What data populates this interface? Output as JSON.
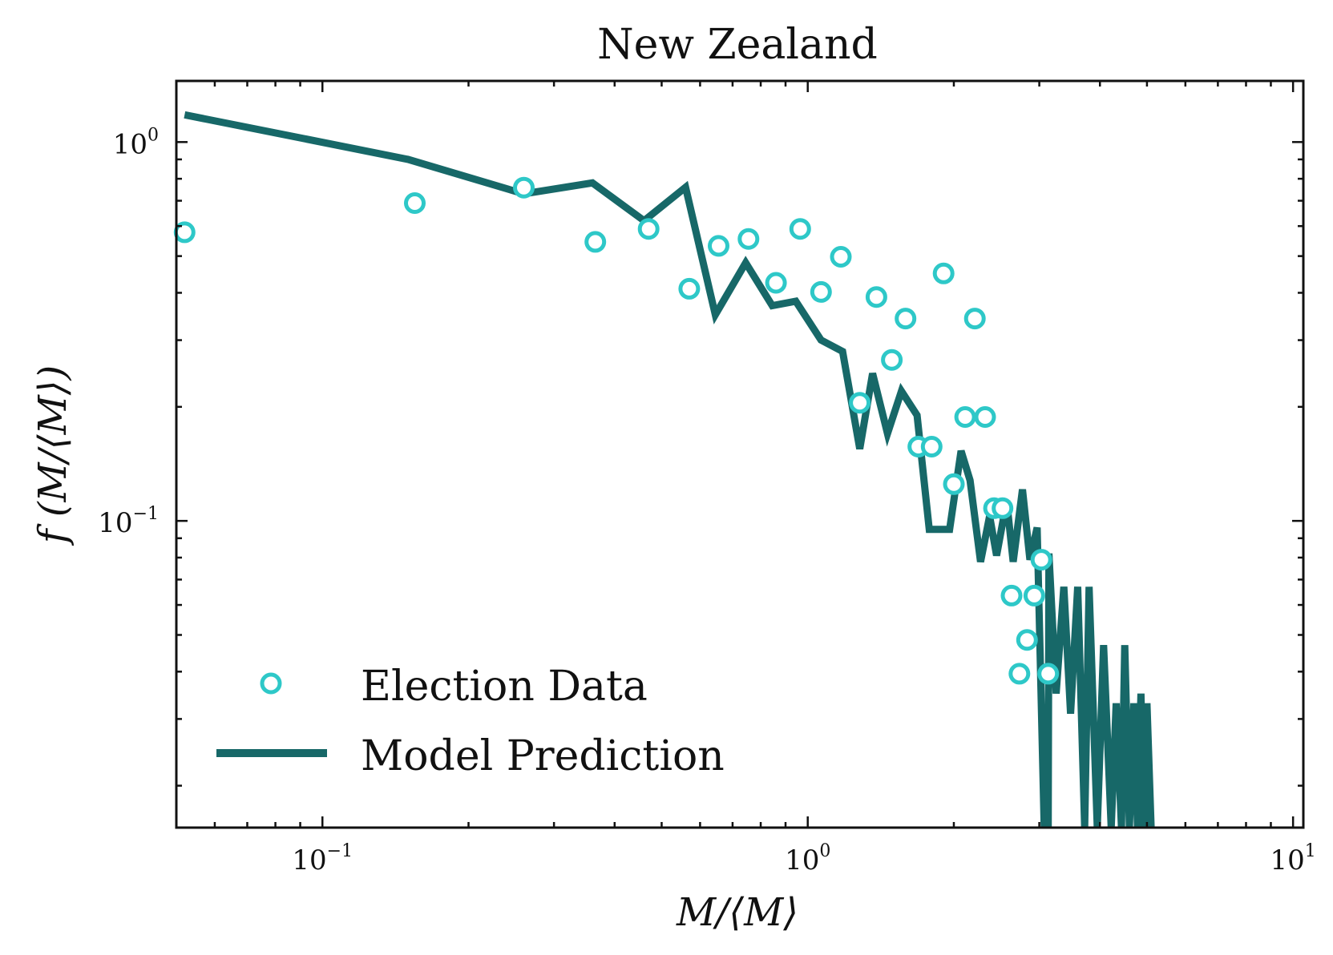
{
  "chart_data": {
    "type": "scatter",
    "title": "New Zealand",
    "xlabel": "M/⟨M⟩",
    "ylabel": "f (M/⟨M⟩)",
    "xscale": "log",
    "yscale": "log",
    "xlim": [
      0.05,
      10.5
    ],
    "ylim": [
      0.0155,
      1.45
    ],
    "x_ticks": [
      {
        "value": 0.1,
        "base": "10",
        "exp": "−1"
      },
      {
        "value": 1,
        "base": "10",
        "exp": "0"
      },
      {
        "value": 10,
        "base": "10",
        "exp": "1"
      }
    ],
    "y_ticks": [
      {
        "value": 0.1,
        "base": "10",
        "exp": "−1"
      },
      {
        "value": 1,
        "base": "10",
        "exp": "0"
      }
    ],
    "grid": false,
    "legend_position": "bottom-left",
    "series": [
      {
        "name": "Election Data",
        "kind": "markers",
        "color": "#2ec8c8",
        "points": [
          [
            0.052,
            0.578
          ],
          [
            0.155,
            0.69
          ],
          [
            0.26,
            0.758
          ],
          [
            0.365,
            0.545
          ],
          [
            0.47,
            0.59
          ],
          [
            0.57,
            0.41
          ],
          [
            0.655,
            0.532
          ],
          [
            0.755,
            0.555
          ],
          [
            0.86,
            0.425
          ],
          [
            0.965,
            0.59
          ],
          [
            1.065,
            0.402
          ],
          [
            1.17,
            0.498
          ],
          [
            1.28,
            0.205
          ],
          [
            1.385,
            0.39
          ],
          [
            1.49,
            0.266
          ],
          [
            1.59,
            0.342
          ],
          [
            1.69,
            0.157
          ],
          [
            1.8,
            0.157
          ],
          [
            1.905,
            0.45
          ],
          [
            2.0,
            0.125
          ],
          [
            2.11,
            0.188
          ],
          [
            2.21,
            0.342
          ],
          [
            2.32,
            0.188
          ],
          [
            2.42,
            0.108
          ],
          [
            2.52,
            0.108
          ],
          [
            2.63,
            0.0635
          ],
          [
            2.73,
            0.0395
          ],
          [
            2.83,
            0.0485
          ],
          [
            2.93,
            0.0635
          ],
          [
            3.03,
            0.079
          ],
          [
            3.13,
            0.0395
          ]
        ]
      },
      {
        "name": "Model Prediction",
        "kind": "line",
        "color": "#176868",
        "points": [
          [
            0.052,
            1.18
          ],
          [
            0.15,
            0.9
          ],
          [
            0.26,
            0.73
          ],
          [
            0.36,
            0.78
          ],
          [
            0.46,
            0.62
          ],
          [
            0.56,
            0.76
          ],
          [
            0.645,
            0.35
          ],
          [
            0.745,
            0.48
          ],
          [
            0.845,
            0.37
          ],
          [
            0.945,
            0.38
          ],
          [
            1.065,
            0.3
          ],
          [
            1.18,
            0.28
          ],
          [
            1.28,
            0.155
          ],
          [
            1.36,
            0.245
          ],
          [
            1.46,
            0.17
          ],
          [
            1.56,
            0.22
          ],
          [
            1.68,
            0.19
          ],
          [
            1.78,
            0.095
          ],
          [
            1.96,
            0.095
          ],
          [
            2.07,
            0.153
          ],
          [
            2.16,
            0.128
          ],
          [
            2.27,
            0.078
          ],
          [
            2.37,
            0.103
          ],
          [
            2.45,
            0.081
          ],
          [
            2.57,
            0.113
          ],
          [
            2.65,
            0.078
          ],
          [
            2.77,
            0.121
          ],
          [
            2.87,
            0.079
          ],
          [
            2.97,
            0.096
          ],
          [
            3.07,
            0.0155
          ],
          [
            3.13,
            0.0155
          ],
          [
            3.14,
            0.082
          ],
          [
            3.25,
            0.035
          ],
          [
            3.37,
            0.067
          ],
          [
            3.48,
            0.031
          ],
          [
            3.6,
            0.067
          ],
          [
            3.72,
            0.0155
          ],
          [
            3.8,
            0.067
          ],
          [
            3.95,
            0.0155
          ],
          [
            4.07,
            0.047
          ],
          [
            4.22,
            0.0155
          ],
          [
            4.32,
            0.033
          ],
          [
            4.43,
            0.0155
          ],
          [
            4.5,
            0.047
          ],
          [
            4.6,
            0.0155
          ],
          [
            4.7,
            0.033
          ],
          [
            4.78,
            0.0155
          ],
          [
            4.86,
            0.035
          ],
          [
            4.93,
            0.0155
          ],
          [
            5.0,
            0.033
          ],
          [
            5.1,
            0.0155
          ]
        ]
      }
    ]
  }
}
